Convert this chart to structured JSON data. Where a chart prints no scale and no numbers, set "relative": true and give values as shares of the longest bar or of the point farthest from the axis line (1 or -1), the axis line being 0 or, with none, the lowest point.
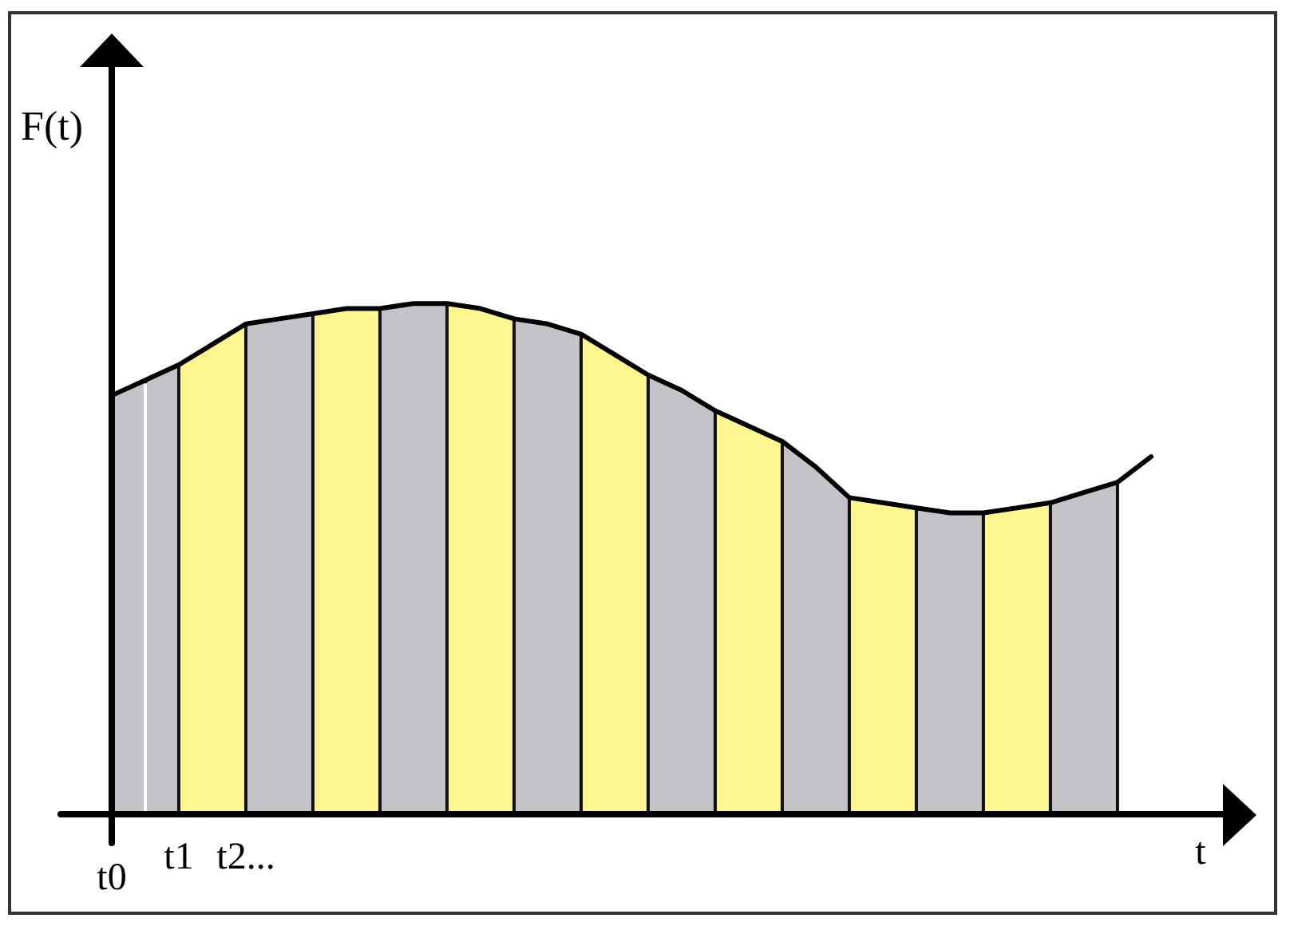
{
  "chart_data": {
    "type": "area",
    "relative": true,
    "xlabel": "t",
    "ylabel": "F(t)",
    "categories": [
      "t0",
      null,
      "t1",
      null,
      "t2...",
      null,
      null,
      null,
      null,
      null,
      null,
      null,
      null,
      null,
      null,
      null,
      null,
      null,
      null,
      null,
      null,
      null,
      null,
      null,
      null,
      null,
      null,
      null,
      null,
      null,
      null,
      null
    ],
    "series": [
      {
        "color": "#c5c3c8",
        "values": [
          0.82,
          0.85,
          null,
          null,
          null,
          null,
          null,
          null,
          null,
          null,
          null,
          null,
          null,
          null,
          null,
          null,
          null,
          null,
          null,
          null,
          null,
          null,
          null,
          null,
          null,
          null,
          null,
          null,
          null,
          null,
          null,
          null
        ]
      },
      {
        "color": "#c5c3c8",
        "values": [
          null,
          0.85,
          0.88,
          null,
          null,
          null,
          null,
          null,
          null,
          null,
          null,
          null,
          null,
          null,
          null,
          null,
          null,
          null,
          null,
          null,
          null,
          null,
          null,
          null,
          null,
          null,
          null,
          null,
          null,
          null,
          null,
          null
        ]
      },
      {
        "color": "#fff68f",
        "values": [
          null,
          null,
          0.88,
          0.92,
          0.96,
          null,
          null,
          null,
          null,
          null,
          null,
          null,
          null,
          null,
          null,
          null,
          null,
          null,
          null,
          null,
          null,
          null,
          null,
          null,
          null,
          null,
          null,
          null,
          null,
          null,
          null,
          null
        ]
      },
      {
        "color": "#c5c3c8",
        "values": [
          null,
          null,
          null,
          null,
          0.96,
          0.97,
          0.98,
          null,
          null,
          null,
          null,
          null,
          null,
          null,
          null,
          null,
          null,
          null,
          null,
          null,
          null,
          null,
          null,
          null,
          null,
          null,
          null,
          null,
          null,
          null,
          null,
          null
        ]
      },
      {
        "color": "#fff68f",
        "values": [
          null,
          null,
          null,
          null,
          null,
          null,
          0.98,
          0.99,
          0.99,
          null,
          null,
          null,
          null,
          null,
          null,
          null,
          null,
          null,
          null,
          null,
          null,
          null,
          null,
          null,
          null,
          null,
          null,
          null,
          null,
          null,
          null,
          null
        ]
      },
      {
        "color": "#c5c3c8",
        "values": [
          null,
          null,
          null,
          null,
          null,
          null,
          null,
          null,
          0.99,
          1.0,
          1.0,
          null,
          null,
          null,
          null,
          null,
          null,
          null,
          null,
          null,
          null,
          null,
          null,
          null,
          null,
          null,
          null,
          null,
          null,
          null,
          null,
          null
        ]
      },
      {
        "color": "#fff68f",
        "values": [
          null,
          null,
          null,
          null,
          null,
          null,
          null,
          null,
          null,
          null,
          1.0,
          0.99,
          0.97,
          null,
          null,
          null,
          null,
          null,
          null,
          null,
          null,
          null,
          null,
          null,
          null,
          null,
          null,
          null,
          null,
          null,
          null,
          null
        ]
      },
      {
        "color": "#c5c3c8",
        "values": [
          null,
          null,
          null,
          null,
          null,
          null,
          null,
          null,
          null,
          null,
          null,
          null,
          0.97,
          0.96,
          0.94,
          null,
          null,
          null,
          null,
          null,
          null,
          null,
          null,
          null,
          null,
          null,
          null,
          null,
          null,
          null,
          null,
          null
        ]
      },
      {
        "color": "#fff68f",
        "values": [
          null,
          null,
          null,
          null,
          null,
          null,
          null,
          null,
          null,
          null,
          null,
          null,
          null,
          null,
          0.94,
          0.9,
          0.86,
          null,
          null,
          null,
          null,
          null,
          null,
          null,
          null,
          null,
          null,
          null,
          null,
          null,
          null,
          null
        ]
      },
      {
        "color": "#c5c3c8",
        "values": [
          null,
          null,
          null,
          null,
          null,
          null,
          null,
          null,
          null,
          null,
          null,
          null,
          null,
          null,
          null,
          null,
          0.86,
          0.83,
          0.79,
          null,
          null,
          null,
          null,
          null,
          null,
          null,
          null,
          null,
          null,
          null,
          null,
          null
        ]
      },
      {
        "color": "#fff68f",
        "values": [
          null,
          null,
          null,
          null,
          null,
          null,
          null,
          null,
          null,
          null,
          null,
          null,
          null,
          null,
          null,
          null,
          null,
          null,
          0.79,
          0.76,
          0.73,
          null,
          null,
          null,
          null,
          null,
          null,
          null,
          null,
          null,
          null,
          null
        ]
      },
      {
        "color": "#c5c3c8",
        "values": [
          null,
          null,
          null,
          null,
          null,
          null,
          null,
          null,
          null,
          null,
          null,
          null,
          null,
          null,
          null,
          null,
          null,
          null,
          null,
          null,
          0.73,
          0.68,
          0.62,
          null,
          null,
          null,
          null,
          null,
          null,
          null,
          null,
          null
        ]
      },
      {
        "color": "#fff68f",
        "values": [
          null,
          null,
          null,
          null,
          null,
          null,
          null,
          null,
          null,
          null,
          null,
          null,
          null,
          null,
          null,
          null,
          null,
          null,
          null,
          null,
          null,
          null,
          0.62,
          0.61,
          0.6,
          null,
          null,
          null,
          null,
          null,
          null,
          null
        ]
      },
      {
        "color": "#c5c3c8",
        "values": [
          null,
          null,
          null,
          null,
          null,
          null,
          null,
          null,
          null,
          null,
          null,
          null,
          null,
          null,
          null,
          null,
          null,
          null,
          null,
          null,
          null,
          null,
          null,
          null,
          0.6,
          0.59,
          0.59,
          null,
          null,
          null,
          null,
          null
        ]
      },
      {
        "color": "#fff68f",
        "values": [
          null,
          null,
          null,
          null,
          null,
          null,
          null,
          null,
          null,
          null,
          null,
          null,
          null,
          null,
          null,
          null,
          null,
          null,
          null,
          null,
          null,
          null,
          null,
          null,
          null,
          null,
          0.59,
          0.6,
          0.61,
          null,
          null,
          null
        ]
      },
      {
        "color": "#c5c3c8",
        "values": [
          null,
          null,
          null,
          null,
          null,
          null,
          null,
          null,
          null,
          null,
          null,
          null,
          null,
          null,
          null,
          null,
          null,
          null,
          null,
          null,
          null,
          null,
          null,
          null,
          null,
          null,
          null,
          null,
          0.61,
          0.63,
          0.65,
          null
        ]
      },
      {
        "type": "line",
        "color": "#000000",
        "values": [
          0.82,
          0.85,
          0.88,
          0.92,
          0.96,
          0.97,
          0.98,
          0.99,
          0.99,
          1.0,
          1.0,
          0.99,
          0.97,
          0.96,
          0.94,
          0.9,
          0.86,
          0.83,
          0.79,
          0.76,
          0.73,
          0.68,
          0.62,
          0.61,
          0.6,
          0.59,
          0.59,
          0.6,
          0.61,
          0.63,
          0.65,
          0.7
        ]
      }
    ]
  }
}
